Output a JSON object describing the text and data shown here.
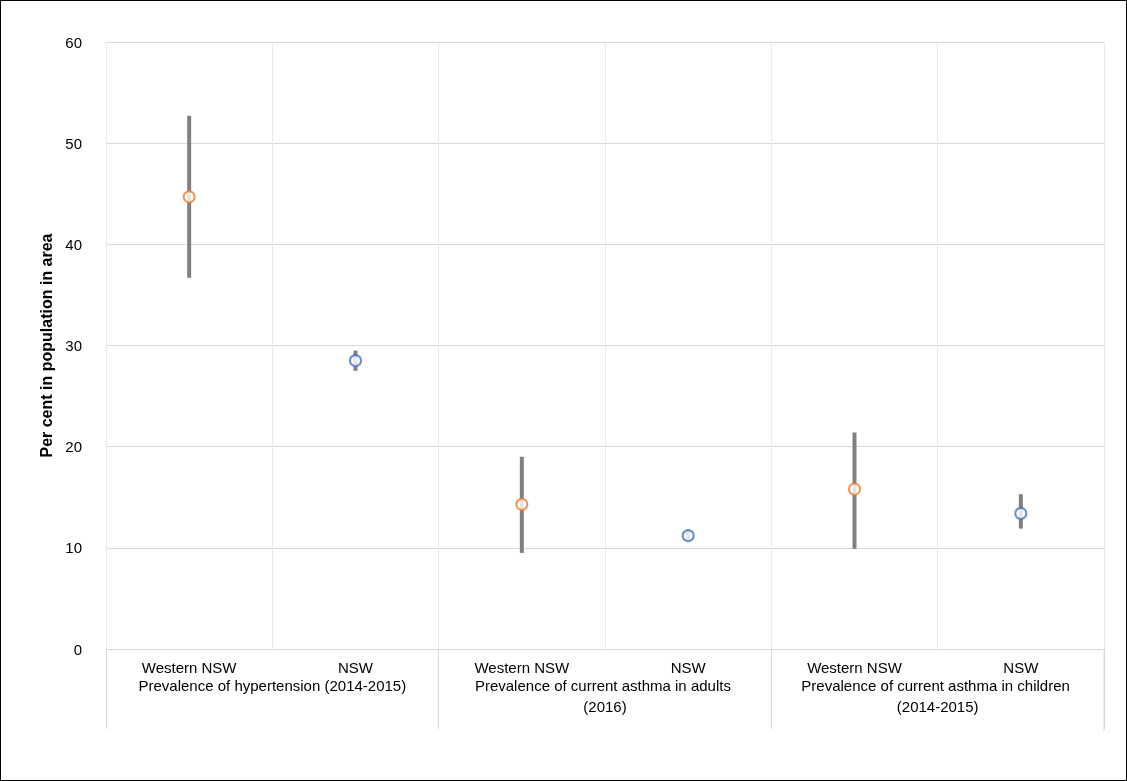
{
  "chart_data": {
    "type": "scatter",
    "ylabel": "Per cent in population in area",
    "categories": [
      "Western NSW",
      "NSW",
      "Western NSW",
      "NSW",
      "Western NSW",
      "NSW"
    ],
    "annotations": [
      "Prevalence of hypertension (2014-2015)",
      "Prevalence of current asthma in adults (2016)",
      "Prevalence of current asthma in children (2014-2015)"
    ],
    "series": [
      {
        "color": "#ed7d31",
        "values": [
          44.7,
          null,
          14.3,
          null,
          15.8,
          null
        ],
        "errors": [
          [
            36.7,
            52.7
          ],
          null,
          [
            9.5,
            19.0
          ],
          null,
          [
            9.9,
            21.4
          ],
          null
        ]
      },
      {
        "color": "#4472c4",
        "values": [
          null,
          28.5,
          null,
          11.2,
          null,
          13.4
        ],
        "errors": [
          null,
          [
            27.5,
            29.5
          ],
          null,
          [
            10.7,
            11.8
          ],
          null,
          [
            11.9,
            15.3
          ]
        ]
      }
    ],
    "ylim": [
      0,
      60
    ],
    "yticks": [
      0,
      10,
      20,
      30,
      40,
      50,
      60
    ],
    "grid": true,
    "marker": "circle"
  }
}
